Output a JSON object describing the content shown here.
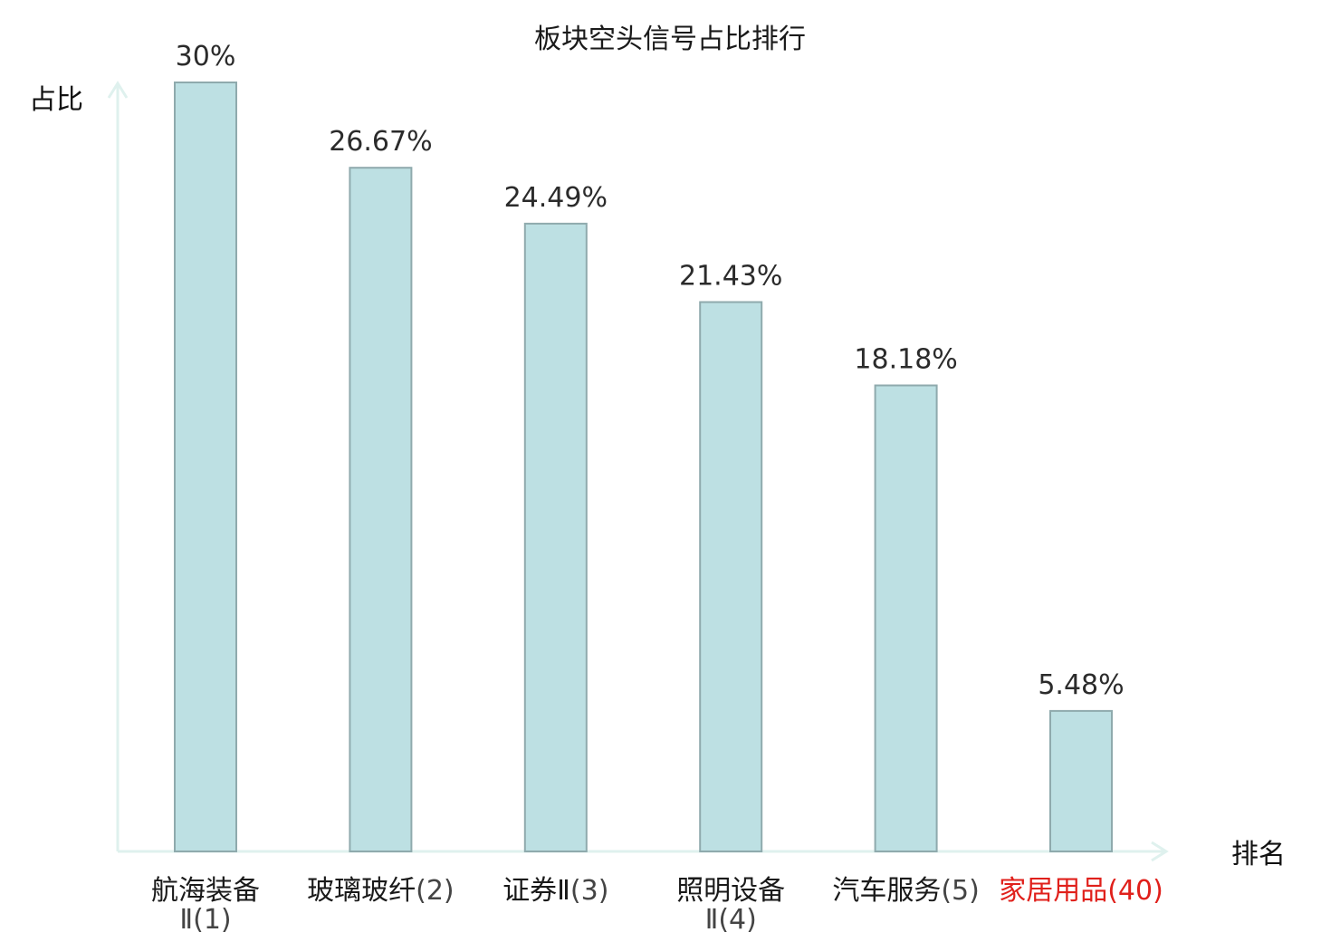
{
  "chart_data": {
    "type": "bar",
    "title": "板块空头信号占比排行",
    "ylabel": "占比",
    "xlabel": "排名",
    "ylim": [
      0,
      30
    ],
    "grid": false,
    "categories": [
      {
        "name": "航海装备Ⅱ",
        "rank": "(1)",
        "value": 30,
        "label": "30%",
        "highlight": false
      },
      {
        "name": "玻璃玻纤",
        "rank": "(2)",
        "value": 26.67,
        "label": "26.67%",
        "highlight": false
      },
      {
        "name": "证券Ⅱ",
        "rank": "(3)",
        "value": 24.49,
        "label": "24.49%",
        "highlight": false
      },
      {
        "name": "照明设备Ⅱ",
        "rank": "(4)",
        "value": 21.43,
        "label": "21.43%",
        "highlight": false
      },
      {
        "name": "汽车服务",
        "rank": "(5)",
        "value": 18.18,
        "label": "18.18%",
        "highlight": false
      },
      {
        "name": "家居用品",
        "rank": "(40)",
        "value": 5.48,
        "label": "5.48%",
        "highlight": true
      }
    ],
    "colors": {
      "bar_fill": "#bde0e3",
      "bar_stroke": "#8faaad",
      "axis": "#dff1ee",
      "highlight_text": "#e0201b"
    }
  }
}
